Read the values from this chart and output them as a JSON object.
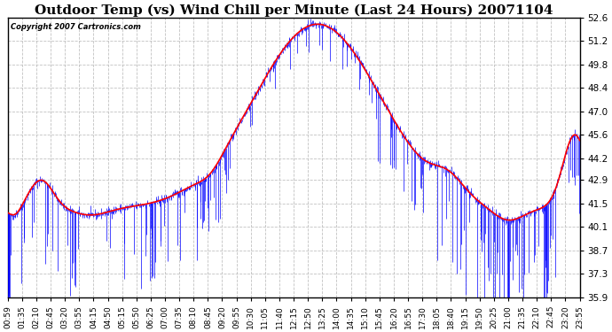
{
  "title": "Outdoor Temp (vs) Wind Chill per Minute (Last 24 Hours) 20071104",
  "copyright_text": "Copyright 2007 Cartronics.com",
  "ylim": [
    35.9,
    52.6
  ],
  "yticks": [
    35.9,
    37.3,
    38.7,
    40.1,
    41.5,
    42.9,
    44.2,
    45.6,
    47.0,
    48.4,
    49.8,
    51.2,
    52.6
  ],
  "xtick_labels": [
    "00:59",
    "01:35",
    "02:10",
    "02:45",
    "03:20",
    "03:55",
    "04:15",
    "04:50",
    "05:15",
    "05:50",
    "06:25",
    "07:00",
    "07:35",
    "08:10",
    "08:45",
    "09:20",
    "09:55",
    "10:30",
    "11:05",
    "11:40",
    "12:15",
    "12:50",
    "13:25",
    "14:00",
    "14:35",
    "15:10",
    "15:45",
    "16:20",
    "16:55",
    "17:30",
    "18:05",
    "18:40",
    "19:15",
    "19:50",
    "20:25",
    "21:00",
    "21:35",
    "22:10",
    "22:45",
    "23:20",
    "23:55"
  ],
  "background_color": "#ffffff",
  "plot_bg_color": "#ffffff",
  "grid_color": "#bbbbbb",
  "title_fontsize": 11,
  "wind_chill_color": "#0000ff",
  "outdoor_temp_color": "#ff0000",
  "num_points": 1440,
  "random_seed": 42
}
